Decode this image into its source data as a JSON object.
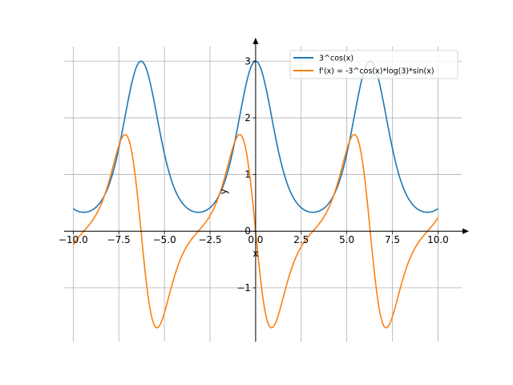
{
  "chart_data": {
    "type": "line",
    "title": "",
    "xlabel": "x",
    "ylabel": "y",
    "xlim": [
      -10.5,
      11.3
    ],
    "ylim": [
      -1.95,
      3.4
    ],
    "x_ticks": [
      -10.0,
      -7.5,
      -5.0,
      -2.5,
      0.0,
      2.5,
      5.0,
      7.5,
      10.0
    ],
    "x_tick_labels": [
      "−10.0",
      "−7.5",
      "−5.0",
      "−2.5",
      "0.0",
      "2.5",
      "5.0",
      "7.5",
      "10.0"
    ],
    "y_ticks": [
      -1,
      0,
      1,
      2,
      3
    ],
    "y_tick_labels": [
      "−1",
      "0",
      "1",
      "2",
      "3"
    ],
    "grid": true,
    "legend_position": "top-right",
    "x_range": [
      -10,
      10
    ],
    "series": [
      {
        "name": "3^cos(x)",
        "color": "#1f77b4",
        "expr": "3^cos(x)"
      },
      {
        "name": "f'(x) = -3^cos(x)*log(3)*sin(x)",
        "color": "#ff7f0e",
        "expr": "-3^cos(x)*log(3)*sin(x)"
      }
    ]
  }
}
